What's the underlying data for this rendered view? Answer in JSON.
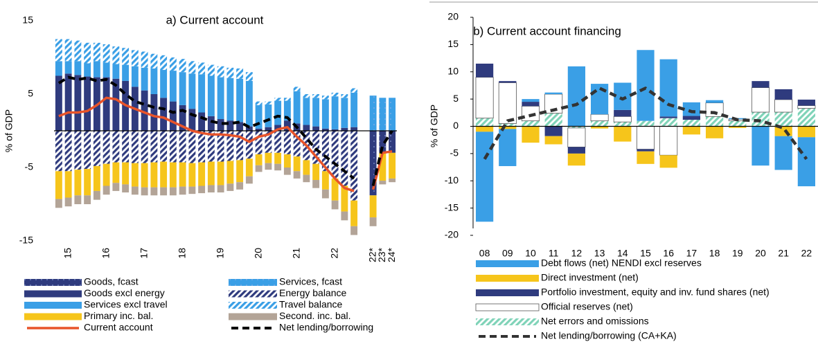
{
  "chart_data": [
    {
      "type": "bar",
      "title": "a) Current account",
      "y_label": "% of GDP",
      "categories": [
        null,
        "15",
        null,
        null,
        null,
        "16",
        null,
        null,
        null,
        "17",
        null,
        null,
        null,
        "18",
        null,
        null,
        null,
        "19",
        null,
        null,
        null,
        "20",
        null,
        null,
        null,
        "21",
        null,
        null,
        null,
        "22",
        null,
        null,
        null,
        "22*",
        "23*",
        "24*"
      ],
      "ylim": [
        -15,
        15
      ],
      "yticks": [
        -15,
        -5,
        5,
        15
      ],
      "series": [
        {
          "name": "Goods, fcast",
          "color": "#2f3b7e",
          "pattern": "dots",
          "values": [
            null,
            null,
            null,
            null,
            null,
            null,
            null,
            null,
            null,
            null,
            null,
            null,
            null,
            null,
            null,
            null,
            null,
            null,
            null,
            null,
            null,
            null,
            null,
            null,
            null,
            null,
            null,
            null,
            null,
            null,
            null,
            null,
            null,
            -8.8,
            -3.0,
            -3.0
          ]
        },
        {
          "name": "Services, fcast",
          "color": "#3a9fe6",
          "pattern": "dots",
          "values": [
            null,
            null,
            null,
            null,
            null,
            null,
            null,
            null,
            null,
            null,
            null,
            null,
            null,
            null,
            null,
            null,
            null,
            null,
            null,
            null,
            null,
            null,
            null,
            null,
            null,
            null,
            null,
            null,
            null,
            null,
            null,
            null,
            null,
            4.8,
            4.5,
            4.5
          ]
        },
        {
          "name": "Goods excl energy",
          "color": "#2f3b7e",
          "values": [
            7.5,
            7.8,
            7.6,
            7.4,
            7.3,
            7.3,
            7.1,
            6.8,
            6.0,
            5.5,
            5.0,
            4.5,
            4.0,
            3.5,
            3.0,
            2.5,
            2.0,
            1.6,
            1.4,
            1.2,
            0.6,
            0.3,
            0.5,
            0.8,
            1.4,
            1.0,
            0.8,
            0.6,
            0.3,
            0.2,
            0.4,
            0.5,
            null,
            null,
            null,
            null
          ]
        },
        {
          "name": "Energy balance",
          "color": "#2f3b7e",
          "pattern": "hatch",
          "values": [
            -5.5,
            -5.5,
            -5.3,
            -5.2,
            -4.8,
            -4.5,
            -4.3,
            -4.3,
            -4.4,
            -4.4,
            -4.3,
            -4.2,
            -4.3,
            -4.3,
            -4.4,
            -4.3,
            -4.2,
            -4.2,
            -4.1,
            -4.0,
            -3.8,
            -3.2,
            -3.0,
            -3.0,
            -3.2,
            -3.5,
            -4.0,
            -4.5,
            -5.5,
            -6.5,
            -7.5,
            -9.5,
            null,
            null,
            null,
            null
          ]
        },
        {
          "name": "Services excl travel",
          "color": "#3a9fe6",
          "values": [
            2.0,
            1.7,
            1.9,
            1.8,
            2.2,
            2.0,
            2.0,
            2.2,
            2.8,
            3.1,
            3.5,
            3.8,
            4.2,
            4.5,
            4.8,
            5.2,
            5.5,
            5.7,
            5.8,
            5.9,
            6.2,
            3.2,
            3.1,
            3.3,
            2.7,
            4.4,
            3.7,
            3.9,
            4.0,
            4.5,
            4.1,
            4.7,
            null,
            null,
            null,
            null
          ]
        },
        {
          "name": "Travel balance",
          "color": "#3a9fe6",
          "pattern": "hatch",
          "values": [
            3.0,
            3.0,
            2.8,
            2.8,
            2.5,
            2.5,
            2.4,
            2.3,
            2.2,
            2.2,
            2.0,
            2.0,
            1.8,
            1.8,
            1.7,
            1.6,
            1.5,
            1.5,
            1.4,
            1.4,
            1.2,
            0.5,
            0.4,
            0.4,
            0.4,
            0.6,
            0.5,
            0.5,
            0.5,
            0.5,
            0.5,
            0.6,
            null,
            null,
            null,
            null
          ]
        },
        {
          "name": "Primary inc. bal.",
          "color": "#f6c51b",
          "values": [
            -3.8,
            -3.6,
            -3.5,
            -3.6,
            -3.4,
            -3.0,
            -2.8,
            -3.0,
            -3.2,
            -3.3,
            -3.4,
            -3.5,
            -3.4,
            -3.3,
            -3.2,
            -3.2,
            -3.2,
            -3.2,
            -3.1,
            -3.0,
            -2.4,
            -1.5,
            -1.4,
            -1.5,
            -1.8,
            -2.0,
            -2.0,
            -2.2,
            -2.5,
            -3.0,
            -3.5,
            -3.5,
            null,
            -3.0,
            -3.8,
            -3.5
          ]
        },
        {
          "name": "Second. inc. bal.",
          "color": "#b3a497",
          "values": [
            -1.2,
            -1.2,
            -1.2,
            -1.2,
            -1.2,
            -1.2,
            -1.1,
            -1.1,
            -1.1,
            -1.1,
            -1.1,
            -1.1,
            -1.1,
            -1.1,
            -1.0,
            -1.0,
            -1.0,
            -1.0,
            -1.0,
            -1.0,
            -1.0,
            -0.9,
            -0.9,
            -0.9,
            -1.0,
            -1.0,
            -1.0,
            -1.1,
            -1.2,
            -1.2,
            -1.2,
            -1.2,
            null,
            -1.2,
            -0.5,
            -0.5
          ]
        },
        {
          "name": "Current account",
          "color": "#e8542a",
          "type": "line",
          "values": [
            2.0,
            2.5,
            2.5,
            2.7,
            3.5,
            4.5,
            4.3,
            3.5,
            3.0,
            2.5,
            2.0,
            1.8,
            1.2,
            0.6,
            0.0,
            -0.3,
            -0.5,
            -0.5,
            -0.6,
            -0.8,
            -1.5,
            -0.8,
            -0.5,
            0.2,
            0.5,
            -0.8,
            -2.0,
            -3.5,
            -5.0,
            -6.5,
            -7.8,
            -8.2,
            null,
            -8.0,
            -3.0,
            -2.8
          ]
        },
        {
          "name": "Net lending/borrowing",
          "color": "#000000",
          "type": "line",
          "dash": true,
          "values": [
            6.5,
            7.3,
            7.0,
            7.2,
            6.8,
            7.0,
            6.2,
            5.0,
            4.0,
            3.6,
            3.2,
            3.0,
            2.5,
            2.8,
            2.2,
            1.8,
            1.3,
            1.0,
            1.0,
            1.2,
            0.5,
            1.0,
            1.5,
            2.0,
            1.8,
            0.5,
            -1.0,
            -2.5,
            -3.5,
            -4.5,
            -5.5,
            -6.5,
            null,
            -7.5,
            -2.0,
            0.0
          ]
        }
      ]
    },
    {
      "type": "bar",
      "title": "b) Current account financing",
      "y_label": "% of GDP",
      "categories": [
        "08",
        "09",
        "10",
        "11",
        "12",
        "13",
        "14",
        "15",
        "16",
        "17",
        "18",
        "19",
        "20",
        "21",
        "22"
      ],
      "ylim": [
        -20,
        20
      ],
      "yticks": [
        -20,
        -15,
        -10,
        -5,
        0,
        5,
        10,
        15,
        20
      ],
      "series": [
        {
          "name": "Debt flows (net) NENDI excl reserves",
          "color": "#3a9fe6",
          "values": [
            -16.5,
            -6.8,
            0.5,
            0.3,
            11.0,
            5.6,
            5.0,
            13.0,
            10.5,
            2.5,
            0.5,
            0.2,
            -7.2,
            -6.2,
            -9.0
          ]
        },
        {
          "name": "Direct investment (net)",
          "color": "#f6c51b",
          "values": [
            -1.0,
            -0.5,
            -3.0,
            -1.5,
            -2.2,
            -0.4,
            -2.8,
            -2.3,
            -2.3,
            -1.5,
            -2.2,
            -0.3,
            0.0,
            -1.8,
            -2.0
          ]
        },
        {
          "name": "Portfolio investment, equity and inv. fund shares (net)",
          "color": "#2f3b7e",
          "values": [
            2.5,
            0.3,
            0.8,
            -1.8,
            -1.2,
            0.0,
            1.2,
            -0.4,
            0.3,
            0.7,
            0.0,
            0.0,
            1.2,
            1.9,
            1.1
          ]
        },
        {
          "name": "Official reserves (net)",
          "color": "#ffffff",
          "values": [
            7.5,
            7.5,
            2.7,
            3.5,
            -3.5,
            1.2,
            1.0,
            -4.2,
            -5.3,
            0.0,
            2.5,
            0.3,
            4.5,
            2.3,
            0.5
          ]
        },
        {
          "name": "Net errors and omissions",
          "color": "#7fd3b8",
          "pattern": "hatch",
          "values": [
            1.5,
            0.5,
            1.0,
            2.4,
            -0.3,
            1.0,
            0.8,
            1.0,
            1.5,
            1.2,
            1.8,
            1.0,
            2.6,
            2.6,
            3.3
          ]
        },
        {
          "name": "Net lending/borrowing (CA+KA)",
          "color": "#333333",
          "type": "line",
          "dash": true,
          "values": [
            -6.0,
            1.0,
            2.0,
            3.0,
            4.0,
            7.0,
            5.0,
            7.0,
            4.0,
            2.7,
            2.5,
            1.2,
            1.0,
            -0.3,
            -6.0
          ]
        }
      ]
    }
  ]
}
